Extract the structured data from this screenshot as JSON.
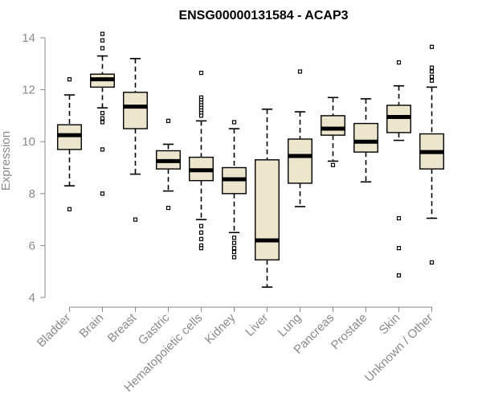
{
  "chart_data": {
    "type": "boxplot",
    "title": "ENSG00000131584 - ACAP3",
    "xlabel": "",
    "ylabel": "Expression",
    "ylim": [
      4,
      14
    ],
    "yticks": [
      4,
      6,
      8,
      10,
      12,
      14
    ],
    "grid": false,
    "box_fill": "#ede6cf",
    "box_stroke": "#000000",
    "axis_color": "#8a8a8a",
    "categories": [
      "Bladder",
      "Brain",
      "Breast",
      "Gastric",
      "Hematopoietic cells",
      "Kidney",
      "Liver",
      "Lung",
      "Pancreas",
      "Prostate",
      "Skin",
      "Unknown / Other"
    ],
    "boxes": [
      {
        "name": "Bladder",
        "whisker_low": 8.3,
        "q1": 9.7,
        "median": 10.25,
        "q3": 10.65,
        "whisker_high": 11.8,
        "outliers": [
          12.4,
          7.4
        ]
      },
      {
        "name": "Brain",
        "whisker_low": 11.3,
        "q1": 12.1,
        "median": 12.4,
        "q3": 12.6,
        "whisker_high": 13.3,
        "outliers": [
          14.15,
          13.9,
          13.6,
          11.1,
          10.9,
          10.75,
          9.7,
          8.0
        ]
      },
      {
        "name": "Breast",
        "whisker_low": 8.75,
        "q1": 10.5,
        "median": 11.35,
        "q3": 11.9,
        "whisker_high": 13.2,
        "outliers": [
          7.0
        ]
      },
      {
        "name": "Gastric",
        "whisker_low": 8.1,
        "q1": 8.95,
        "median": 9.25,
        "q3": 9.65,
        "whisker_high": 9.9,
        "outliers": [
          10.8,
          7.45
        ]
      },
      {
        "name": "Hematopoietic cells",
        "whisker_low": 7.0,
        "q1": 8.5,
        "median": 8.9,
        "q3": 9.4,
        "whisker_high": 10.8,
        "outliers": [
          12.65,
          11.7,
          11.6,
          11.5,
          11.4,
          11.3,
          11.2,
          11.1,
          11.0,
          6.75,
          6.5,
          6.25,
          6.0,
          5.9
        ]
      },
      {
        "name": "Kidney",
        "whisker_low": 6.5,
        "q1": 8.0,
        "median": 8.55,
        "q3": 9.0,
        "whisker_high": 10.5,
        "outliers": [
          10.75,
          6.3,
          6.1,
          5.9,
          5.75,
          5.55
        ]
      },
      {
        "name": "Liver",
        "whisker_low": 4.4,
        "q1": 5.45,
        "median": 6.2,
        "q3": 9.3,
        "whisker_high": 11.25,
        "outliers": []
      },
      {
        "name": "Lung",
        "whisker_low": 7.5,
        "q1": 8.4,
        "median": 9.45,
        "q3": 10.1,
        "whisker_high": 11.15,
        "outliers": [
          12.7
        ]
      },
      {
        "name": "Pancreas",
        "whisker_low": 9.25,
        "q1": 10.25,
        "median": 10.5,
        "q3": 11.0,
        "whisker_high": 11.7,
        "outliers": [
          9.1
        ]
      },
      {
        "name": "Prostate",
        "whisker_low": 8.45,
        "q1": 9.6,
        "median": 10.0,
        "q3": 10.7,
        "whisker_high": 11.65,
        "outliers": []
      },
      {
        "name": "Skin",
        "whisker_low": 10.05,
        "q1": 10.35,
        "median": 10.95,
        "q3": 11.4,
        "whisker_high": 12.15,
        "outliers": [
          13.05,
          7.05,
          5.9,
          4.85
        ]
      },
      {
        "name": "Unknown / Other",
        "whisker_low": 7.05,
        "q1": 8.95,
        "median": 9.6,
        "q3": 10.3,
        "whisker_high": 12.1,
        "outliers": [
          13.65,
          12.85,
          12.7,
          12.5,
          12.35,
          5.35
        ]
      }
    ]
  }
}
